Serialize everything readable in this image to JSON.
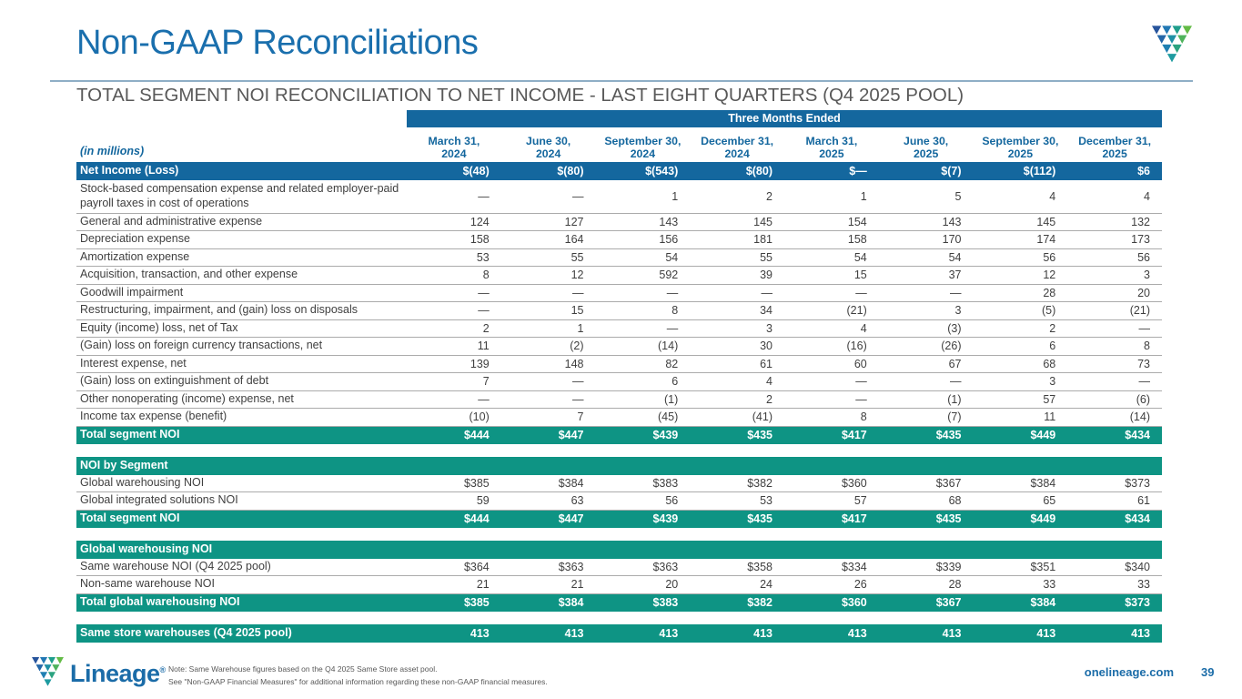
{
  "page": {
    "title": "Non-GAAP Reconciliations",
    "subtitle": "TOTAL SEGMENT NOI RECONCILIATION TO NET INCOME - LAST EIGHT QUARTERS (Q4 2025 POOL)",
    "page_number": "39",
    "website": "onelineage.com"
  },
  "brand": {
    "name": "Lineage",
    "trademark": "®"
  },
  "colors": {
    "accent_blue": "#14679E",
    "accent_teal": "#0E9484",
    "title_blue": "#1A6FAD",
    "body_text": "#3F3F3F",
    "subtitle_gray": "#595959"
  },
  "footer": {
    "note_line1": "Note: Same Warehouse figures based on the Q4 2025 Same Store asset pool.",
    "note_line2": "See \"Non-GAAP Financial Measures\" for additional information regarding these non-GAAP financial measures."
  },
  "table": {
    "units_label": "(in millions)",
    "span_header": "Three Months Ended",
    "columns": [
      [
        "March 31,",
        "2024"
      ],
      [
        "June 30,",
        "2024"
      ],
      [
        "September 30,",
        "2024"
      ],
      [
        "December 31,",
        "2024"
      ],
      [
        "March 31,",
        "2025"
      ],
      [
        "June 30,",
        "2025"
      ],
      [
        "September 30,",
        "2025"
      ],
      [
        "December 31,",
        "2025"
      ]
    ],
    "rows": [
      {
        "type": "blue",
        "label": "Net Income (Loss)",
        "values": [
          "$(48)",
          "$(80)",
          "$(543)",
          "$(80)",
          "$—",
          "$(7)",
          "$(112)",
          "$6"
        ]
      },
      {
        "type": "normal",
        "tall": true,
        "label": "Stock-based compensation expense and related employer-paid payroll taxes in cost of operations",
        "values": [
          "—",
          "—",
          "1",
          "2",
          "1",
          "5",
          "4",
          "4"
        ]
      },
      {
        "type": "normal",
        "label": "General and administrative expense",
        "values": [
          "124",
          "127",
          "143",
          "145",
          "154",
          "143",
          "145",
          "132"
        ]
      },
      {
        "type": "normal",
        "label": "Depreciation expense",
        "values": [
          "158",
          "164",
          "156",
          "181",
          "158",
          "170",
          "174",
          "173"
        ]
      },
      {
        "type": "normal",
        "label": "Amortization expense",
        "values": [
          "53",
          "55",
          "54",
          "55",
          "54",
          "54",
          "56",
          "56"
        ]
      },
      {
        "type": "normal",
        "label": "Acquisition, transaction, and other expense",
        "values": [
          "8",
          "12",
          "592",
          "39",
          "15",
          "37",
          "12",
          "3"
        ]
      },
      {
        "type": "normal",
        "label": "Goodwill impairment",
        "values": [
          "—",
          "—",
          "—",
          "—",
          "—",
          "—",
          "28",
          "20"
        ]
      },
      {
        "type": "normal",
        "label": "Restructuring, impairment, and (gain) loss on disposals",
        "values": [
          "—",
          "15",
          "8",
          "34",
          "(21)",
          "3",
          "(5)",
          "(21)"
        ]
      },
      {
        "type": "normal",
        "label": "Equity (income) loss, net of Tax",
        "values": [
          "2",
          "1",
          "—",
          "3",
          "4",
          "(3)",
          "2",
          "—"
        ]
      },
      {
        "type": "normal",
        "label": "(Gain) loss on foreign currency transactions, net",
        "values": [
          "11",
          "(2)",
          "(14)",
          "30",
          "(16)",
          "(26)",
          "6",
          "8"
        ]
      },
      {
        "type": "normal",
        "label": "Interest expense, net",
        "values": [
          "139",
          "148",
          "82",
          "61",
          "60",
          "67",
          "68",
          "73"
        ]
      },
      {
        "type": "normal",
        "label": "(Gain) loss on extinguishment of debt",
        "values": [
          "7",
          "—",
          "6",
          "4",
          "—",
          "—",
          "3",
          "—"
        ]
      },
      {
        "type": "normal",
        "label": "Other nonoperating (income) expense, net",
        "values": [
          "—",
          "—",
          "(1)",
          "2",
          "—",
          "(1)",
          "57",
          "(6)"
        ]
      },
      {
        "type": "normal",
        "label": "Income tax expense (benefit)",
        "values": [
          "(10)",
          "7",
          "(45)",
          "(41)",
          "8",
          "(7)",
          "11",
          "(14)"
        ]
      },
      {
        "type": "teal",
        "label": "Total segment NOI",
        "values": [
          "$444",
          "$447",
          "$439",
          "$435",
          "$417",
          "$435",
          "$449",
          "$434"
        ]
      },
      {
        "type": "spacer"
      },
      {
        "type": "section",
        "label": "NOI by Segment"
      },
      {
        "type": "normal",
        "label": "Global warehousing NOI",
        "values": [
          "$385",
          "$384",
          "$383",
          "$382",
          "$360",
          "$367",
          "$384",
          "$373"
        ]
      },
      {
        "type": "normal",
        "label": "Global integrated solutions NOI",
        "values": [
          "59",
          "63",
          "56",
          "53",
          "57",
          "68",
          "65",
          "61"
        ]
      },
      {
        "type": "teal",
        "label": "Total segment NOI",
        "values": [
          "$444",
          "$447",
          "$439",
          "$435",
          "$417",
          "$435",
          "$449",
          "$434"
        ]
      },
      {
        "type": "spacer"
      },
      {
        "type": "section",
        "label": "Global warehousing NOI"
      },
      {
        "type": "normal",
        "label": "Same warehouse NOI (Q4 2025 pool)",
        "values": [
          "$364",
          "$363",
          "$363",
          "$358",
          "$334",
          "$339",
          "$351",
          "$340"
        ]
      },
      {
        "type": "normal",
        "label": "Non-same warehouse NOI",
        "values": [
          "21",
          "21",
          "20",
          "24",
          "26",
          "28",
          "33",
          "33"
        ]
      },
      {
        "type": "teal",
        "label": "Total global warehousing NOI",
        "values": [
          "$385",
          "$384",
          "$383",
          "$382",
          "$360",
          "$367",
          "$384",
          "$373"
        ]
      },
      {
        "type": "spacer"
      },
      {
        "type": "teal",
        "label": "Same store warehouses (Q4 2025 pool)",
        "values": [
          "413",
          "413",
          "413",
          "413",
          "413",
          "413",
          "413",
          "413"
        ]
      }
    ]
  }
}
